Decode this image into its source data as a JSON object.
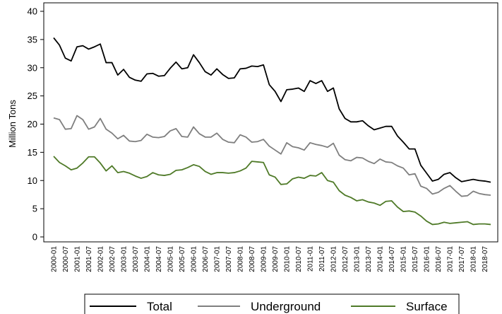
{
  "chart_data": {
    "type": "line",
    "y_label": "Million Tons",
    "categories": [
      "2000-01",
      null,
      "2000-07",
      null,
      "2001-01",
      null,
      "2001-07",
      null,
      "2002-01",
      null,
      "2002-07",
      null,
      "2003-01",
      null,
      "2003-07",
      null,
      "2004-01",
      null,
      "2004-07",
      null,
      "2005-01",
      null,
      "2005-07",
      null,
      "2006-01",
      null,
      "2006-07",
      null,
      "2007-01",
      null,
      "2007-07",
      null,
      "2008-01",
      null,
      "2008-07",
      null,
      "2009-01",
      null,
      "2009-07",
      null,
      "2010-01",
      null,
      "2010-07",
      null,
      "2011-01",
      null,
      "2011-07",
      null,
      "2012-01",
      null,
      "2012-07",
      null,
      "2013-01",
      null,
      "2013-07",
      null,
      "2014-01",
      null,
      "2014-07",
      null,
      "2015-01",
      null,
      "2015-07",
      null,
      "2016-01",
      null,
      "2016-07",
      null,
      "2017-01",
      null,
      "2017-07",
      null,
      "2018-01",
      null,
      "2018-07",
      null
    ],
    "series": [
      {
        "name": "Total",
        "color": "#000000",
        "values": [
          35.3,
          34,
          31.7,
          31.2,
          33.7,
          33.9,
          33.3,
          33.7,
          34.2,
          30.9,
          30.9,
          28.7,
          29.7,
          28.3,
          27.8,
          27.6,
          28.9,
          29,
          28.5,
          28.6,
          29.9,
          31,
          29.8,
          30,
          32.3,
          30.9,
          29.3,
          28.7,
          29.8,
          28.8,
          28.1,
          28.2,
          29.8,
          29.9,
          30.3,
          30.2,
          30.5,
          27,
          25.8,
          24,
          26.1,
          26.2,
          26.4,
          25.8,
          27.7,
          27.2,
          27.7,
          25.8,
          26.4,
          22.7,
          21,
          20.4,
          20.4,
          20.6,
          19.7,
          19,
          19.3,
          19.6,
          19.6,
          17.9,
          16.8,
          15.6,
          15.6,
          12.7,
          11.3,
          9.9,
          10.2,
          11.1,
          11.4,
          10.5,
          9.8,
          10,
          10.2,
          10,
          9.9,
          9.7
        ]
      },
      {
        "name": "Underground",
        "color": "#7f7f7f",
        "values": [
          21.1,
          20.8,
          19.1,
          19.2,
          21.5,
          20.8,
          19.1,
          19.5,
          21,
          19.1,
          18.4,
          17.4,
          18,
          17,
          16.9,
          17.1,
          18.2,
          17.7,
          17.6,
          17.8,
          18.8,
          19.2,
          17.8,
          17.7,
          19.5,
          18.3,
          17.7,
          17.7,
          18.4,
          17.3,
          16.8,
          16.7,
          18.1,
          17.7,
          16.8,
          16.9,
          17.3,
          16.1,
          15.4,
          14.7,
          16.7,
          16,
          15.8,
          15.4,
          16.7,
          16.4,
          16.2,
          15.9,
          16.6,
          14.5,
          13.7,
          13.5,
          14.1,
          14,
          13.4,
          13,
          13.8,
          13.3,
          13.2,
          12.6,
          12.2,
          11,
          11.2,
          9,
          8.6,
          7.6,
          7.9,
          8.6,
          9.1,
          8.1,
          7.2,
          7.3,
          8.1,
          7.7,
          7.5,
          7.4
        ]
      },
      {
        "name": "Surface",
        "color": "#4f7a28",
        "values": [
          14.3,
          13.2,
          12.6,
          11.9,
          12.2,
          13.1,
          14.2,
          14.2,
          13.1,
          11.7,
          12.6,
          11.4,
          11.6,
          11.3,
          10.8,
          10.4,
          10.7,
          11.4,
          11,
          10.9,
          11.1,
          11.8,
          11.9,
          12.3,
          12.8,
          12.5,
          11.6,
          11.1,
          11.4,
          11.4,
          11.3,
          11.4,
          11.7,
          12.2,
          13.4,
          13.3,
          13.2,
          11,
          10.6,
          9.3,
          9.4,
          10.3,
          10.6,
          10.4,
          10.9,
          10.8,
          11.4,
          10,
          9.7,
          8.2,
          7.4,
          7,
          6.4,
          6.6,
          6.2,
          6,
          5.6,
          6.3,
          6.4,
          5.3,
          4.5,
          4.6,
          4.4,
          3.7,
          2.8,
          2.2,
          2.3,
          2.6,
          2.4,
          2.5,
          2.6,
          2.7,
          2.2,
          2.3,
          2.3,
          2.2
        ]
      }
    ],
    "ylim": [
      0,
      40
    ],
    "yticks": [
      0,
      5,
      10,
      15,
      20,
      25,
      30,
      35,
      40
    ],
    "grid": false,
    "legend": "bottom"
  }
}
